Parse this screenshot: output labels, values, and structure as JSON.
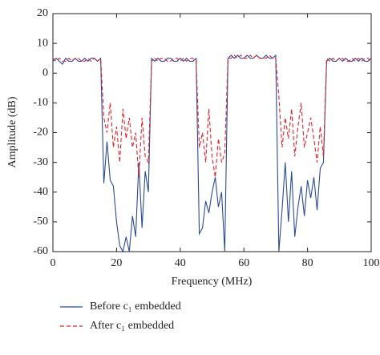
{
  "chart_data": {
    "type": "line",
    "xlabel": "Frequency (MHz)",
    "ylabel": "Amplitude (dB)",
    "x": [
      0,
      1,
      2,
      3,
      4,
      5,
      6,
      7,
      8,
      9,
      10,
      11,
      12,
      13,
      14,
      15,
      16,
      17,
      18,
      19,
      20,
      21,
      22,
      23,
      24,
      25,
      26,
      27,
      28,
      29,
      30,
      31,
      32,
      33,
      34,
      35,
      36,
      37,
      38,
      39,
      40,
      41,
      42,
      43,
      44,
      45,
      46,
      47,
      48,
      49,
      50,
      51,
      52,
      53,
      54,
      55,
      56,
      57,
      58,
      59,
      60,
      61,
      62,
      63,
      64,
      65,
      66,
      67,
      68,
      69,
      70,
      71,
      72,
      73,
      74,
      75,
      76,
      77,
      78,
      79,
      80,
      81,
      82,
      83,
      84,
      85,
      86,
      87,
      88,
      89,
      90,
      91,
      92,
      93,
      94,
      95,
      96,
      97,
      98,
      99,
      100
    ],
    "series": [
      {
        "name": "Before c₁ embedded",
        "color": "#2a4a9a",
        "dash": false,
        "values": [
          4,
          5,
          4,
          3,
          5,
          4,
          4,
          5,
          4,
          4,
          5,
          4,
          5,
          5,
          4,
          5,
          -37,
          -23,
          -36,
          -38,
          -50,
          -58,
          -60,
          -55,
          -60,
          -48,
          -55,
          -30,
          -52,
          -33,
          -40,
          5,
          4,
          5,
          4,
          4,
          5,
          5,
          4,
          4,
          5,
          4,
          5,
          4,
          4,
          5,
          -54,
          -52,
          -43,
          -47,
          -40,
          -35,
          -45,
          -40,
          -60,
          5,
          6,
          5,
          6,
          5,
          5,
          6,
          5,
          5,
          6,
          5,
          5,
          6,
          5,
          5,
          6,
          -60,
          -46,
          -30,
          -50,
          -33,
          -55,
          -45,
          -38,
          -48,
          -36,
          -42,
          -35,
          -46,
          -32,
          -30,
          4,
          5,
          4,
          4,
          5,
          4,
          5,
          4,
          4,
          5,
          4,
          5,
          4,
          4,
          5
        ]
      },
      {
        "name": "After c₁ embedded",
        "color": "#e8202a",
        "dash": true,
        "values": [
          5,
          4,
          5,
          4,
          4,
          5,
          4,
          5,
          5,
          4,
          4,
          5,
          4,
          5,
          4,
          5,
          -15,
          -20,
          -10,
          -25,
          -18,
          -30,
          -12,
          -22,
          -15,
          -25,
          -20,
          -35,
          -15,
          -28,
          -30,
          4,
          5,
          4,
          5,
          5,
          4,
          4,
          5,
          5,
          4,
          5,
          4,
          5,
          5,
          4,
          -25,
          -20,
          -30,
          -12,
          -28,
          -35,
          -22,
          -30,
          -27,
          5,
          5,
          6,
          5,
          6,
          5,
          5,
          6,
          5,
          6,
          5,
          5,
          5,
          6,
          5,
          5,
          -8,
          -25,
          -15,
          -22,
          -12,
          -28,
          -18,
          -10,
          -25,
          -20,
          -15,
          -22,
          -30,
          -18,
          -28,
          5,
          4,
          5,
          4,
          5,
          5,
          4,
          4,
          5,
          4,
          5,
          4,
          5,
          5,
          4
        ]
      }
    ],
    "xlim": [
      0,
      100
    ],
    "xticks": [
      0,
      20,
      40,
      60,
      80,
      100
    ],
    "ylim": [
      -60,
      20
    ],
    "yticks": [
      -60,
      -50,
      -40,
      -30,
      -20,
      -10,
      0,
      10,
      20
    ],
    "grid": false,
    "legend": "bottom"
  }
}
